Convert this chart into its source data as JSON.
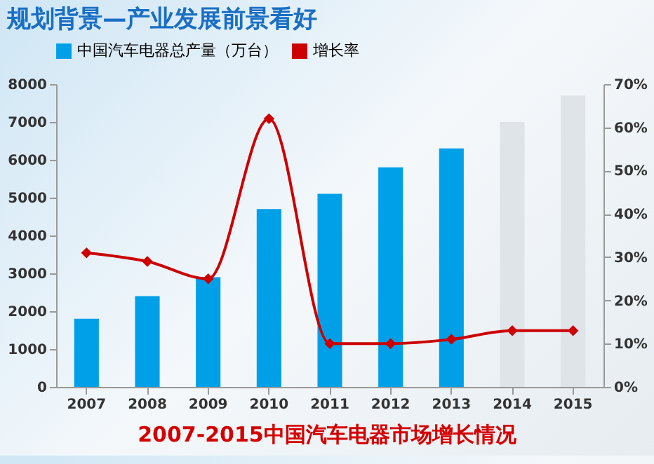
{
  "chart_data": {
    "type": "bar",
    "title": "规划背景—产业发展前景看好",
    "annotations": [
      "2007-2015中国汽车电器市场增长情况"
    ],
    "categories": [
      "2007",
      "2008",
      "2009",
      "2010",
      "2011",
      "2012",
      "2013",
      "2014",
      "2015"
    ],
    "series": [
      {
        "name": "中国汽车电器总产量（万台）",
        "color": "#00a0e9",
        "colors": [
          "#00a0e9",
          "#00a0e9",
          "#00a0e9",
          "#00a0e9",
          "#00a0e9",
          "#00a0e9",
          "#00a0e9",
          "#dfe4e8",
          "#dfe4e8"
        ],
        "values": [
          1800,
          2400,
          2900,
          4700,
          5100,
          5800,
          6300,
          7000,
          7700
        ]
      },
      {
        "name": "增长率",
        "type": "line",
        "axis": "y2",
        "color": "#cc0000",
        "marker": "diamond",
        "values": [
          31,
          29,
          25,
          62,
          10,
          10,
          11,
          13,
          13
        ]
      }
    ],
    "ylim": [
      0,
      8000
    ],
    "yticks": [
      0,
      1000,
      2000,
      3000,
      4000,
      5000,
      6000,
      7000,
      8000
    ],
    "y2lim": [
      0,
      70
    ],
    "y2ticks": [
      {
        "value": 0,
        "label": "0%"
      },
      {
        "value": 10,
        "label": "10%"
      },
      {
        "value": 20,
        "label": "20%"
      },
      {
        "value": 30,
        "label": "30%"
      },
      {
        "value": 40,
        "label": "40%"
      },
      {
        "value": 50,
        "label": "50%"
      },
      {
        "value": 60,
        "label": "60%"
      },
      {
        "value": 70,
        "label": "70%"
      }
    ],
    "legend": "top",
    "grid": false
  }
}
